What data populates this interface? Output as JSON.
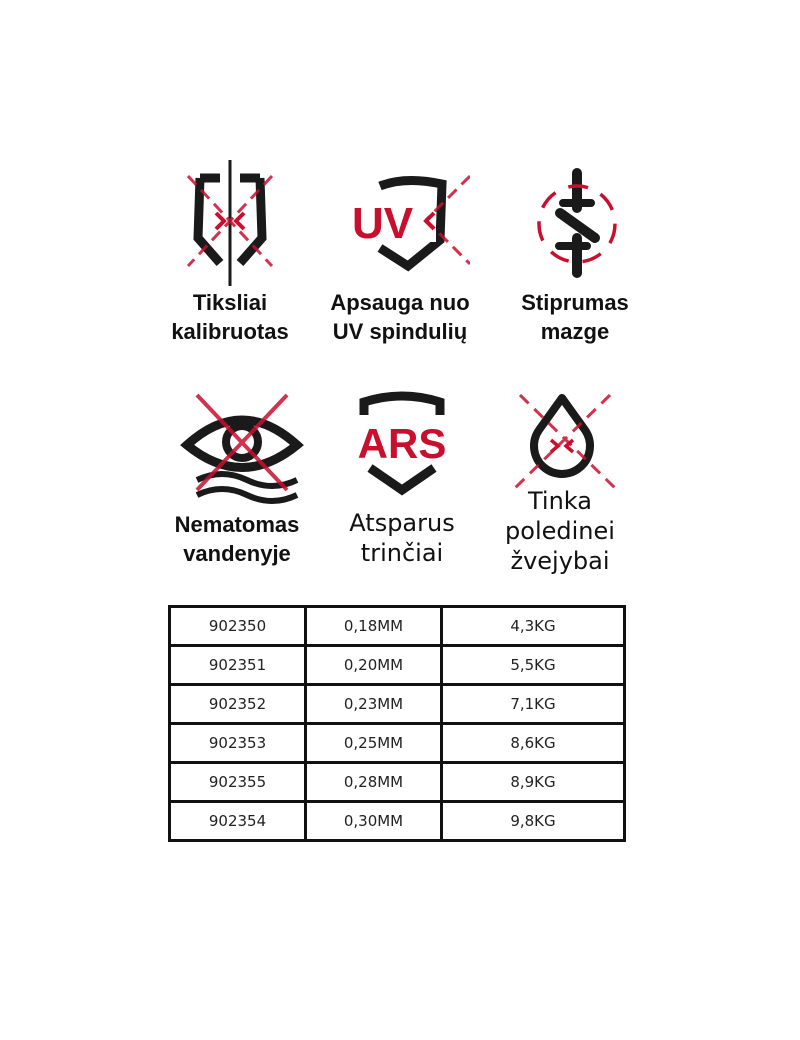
{
  "features": [
    {
      "icon": "calibration-shield-icon",
      "line1": "Tiksliai",
      "line2": "kalibruotas"
    },
    {
      "icon": "uv-shield-icon",
      "line1": "Apsauga nuo",
      "line2": "UV spindulių",
      "badge": "UV"
    },
    {
      "icon": "knot-strength-icon",
      "line1": "Stiprumas",
      "line2": "mazge"
    },
    {
      "icon": "invisible-eye-water-icon",
      "line1": "Nematomas",
      "line2": "vandenyje"
    },
    {
      "icon": "ars-shield-icon",
      "line1": "Atsparus",
      "line2": "trinčiai",
      "badge": "ARS"
    },
    {
      "icon": "ice-drop-icon",
      "line1": "Tinka",
      "line2": "poledinei",
      "line3": "žvejybai"
    }
  ],
  "colors": {
    "accent": "#c8102e",
    "ink": "#1a1a1a"
  },
  "table": {
    "rows": [
      [
        "902350",
        "0,18MM",
        "4,3KG"
      ],
      [
        "902351",
        "0,20MM",
        "5,5KG"
      ],
      [
        "902352",
        "0,23MM",
        "7,1KG"
      ],
      [
        "902353",
        "0,25MM",
        "8,6KG"
      ],
      [
        "902355",
        "0,28MM",
        "8,9KG"
      ],
      [
        "902354",
        "0,30MM",
        "9,8KG"
      ]
    ]
  }
}
